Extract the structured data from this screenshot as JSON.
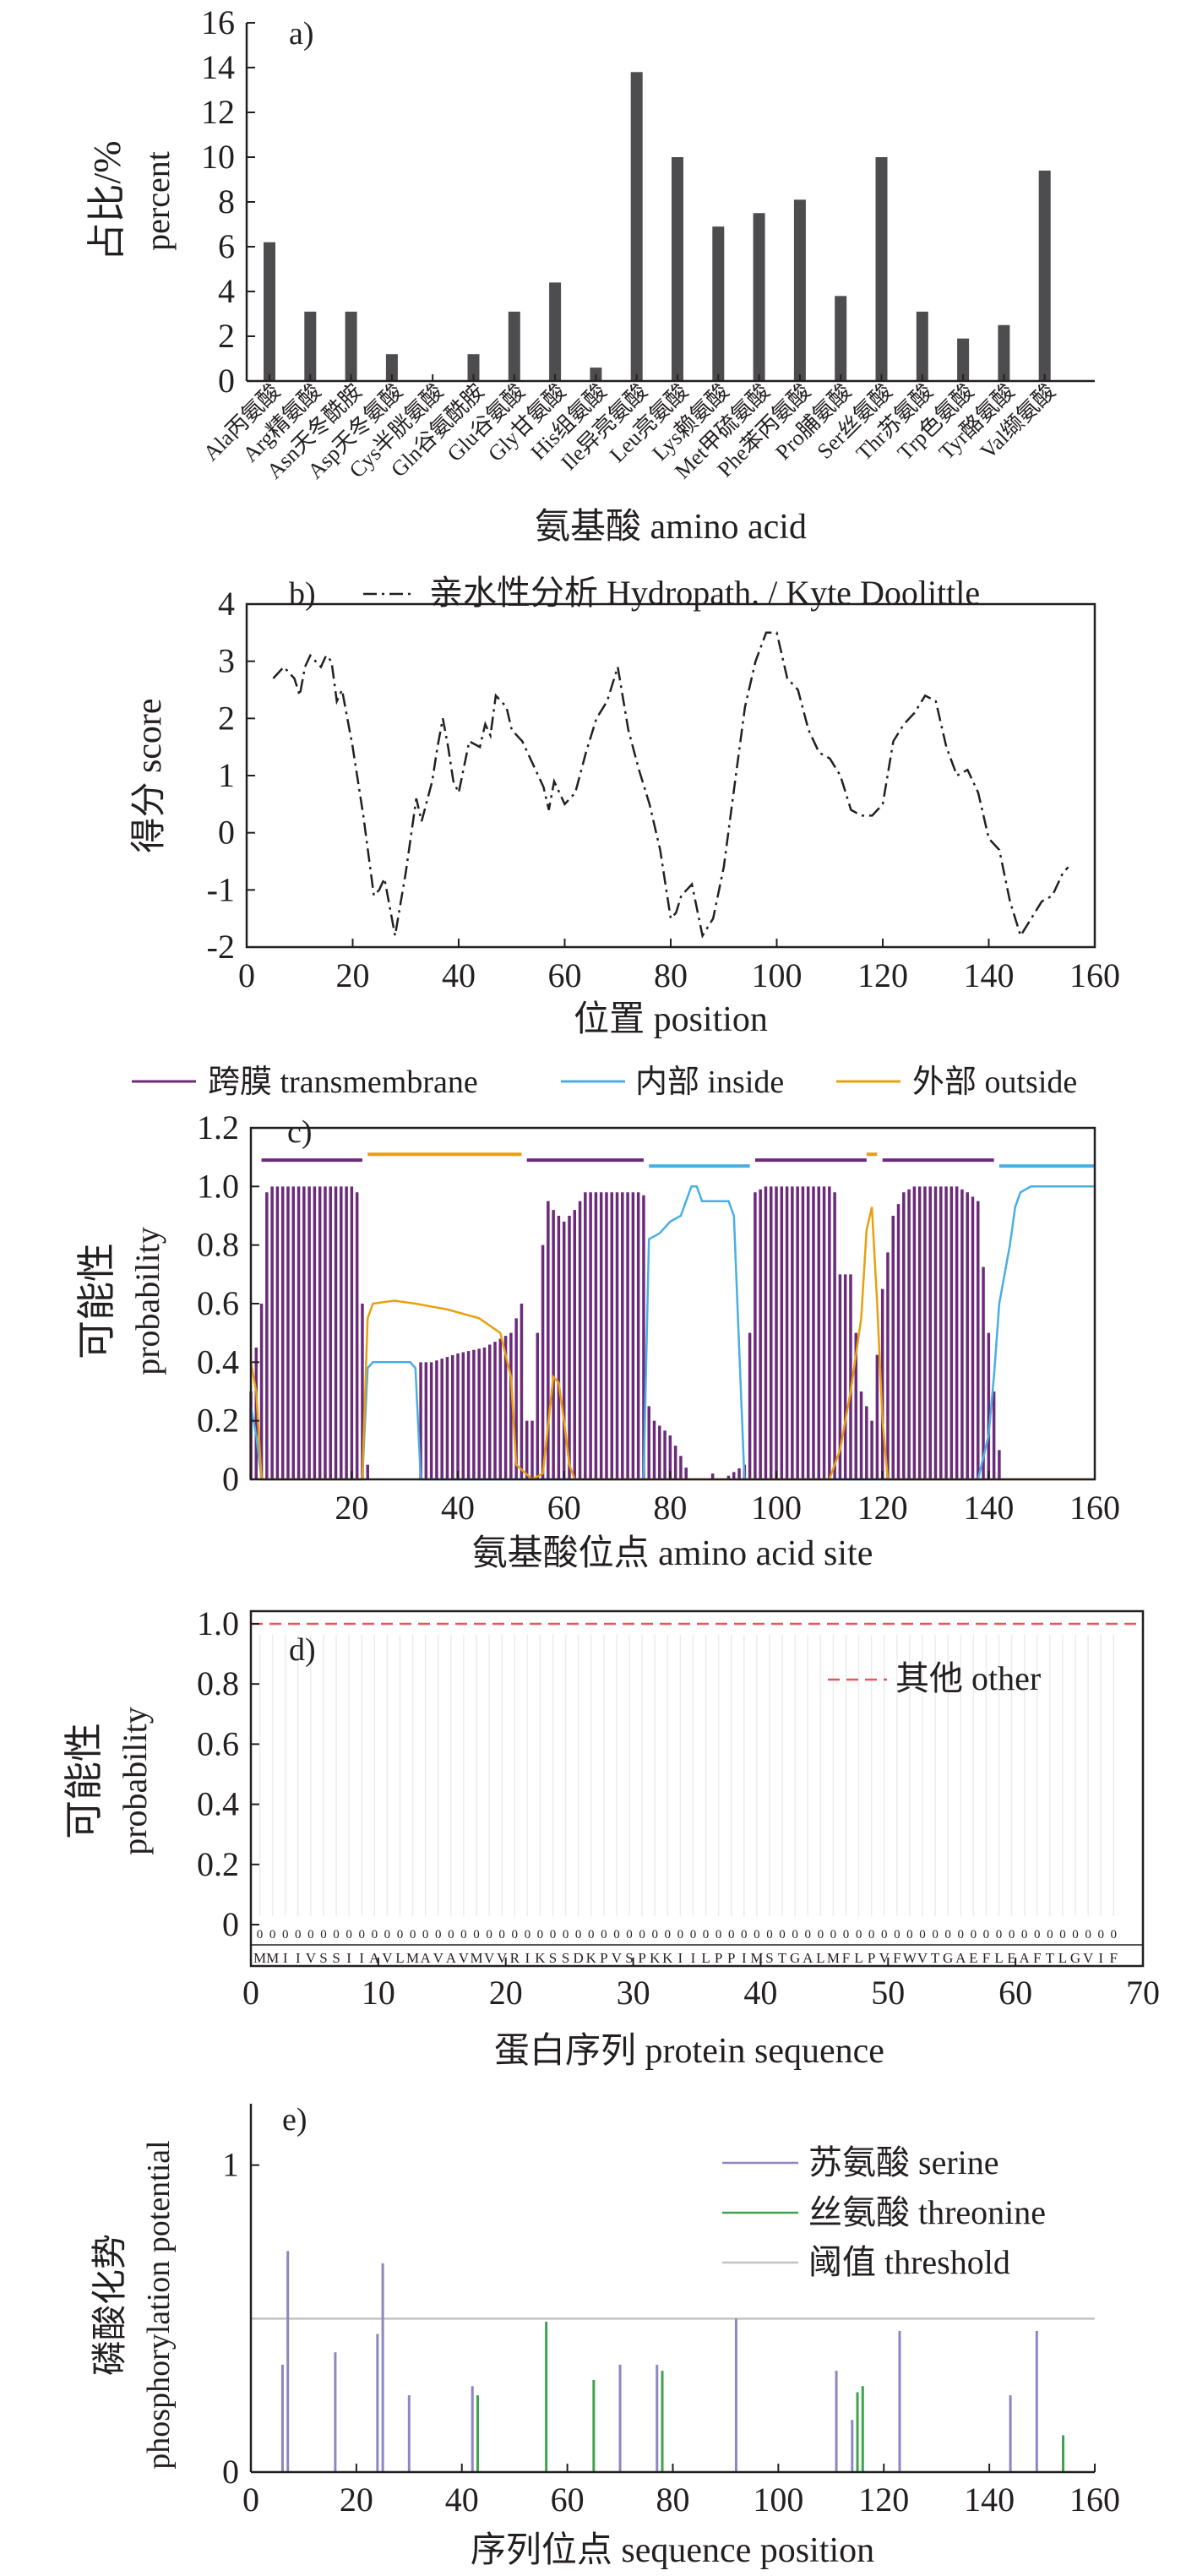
{
  "panels": [
    {
      "id": "a",
      "panel_label": "a)",
      "chart_data": {
        "type": "bar",
        "xlabel": "氨基酸 amino acid",
        "ylabel_cn": "占比/%",
        "ylabel_en": "percent",
        "ylim": [
          0,
          16
        ],
        "yticks": [
          0,
          2,
          4,
          6,
          8,
          10,
          12,
          14,
          16
        ],
        "categories": [
          "Ala丙氨酸",
          "Arg精氨酸",
          "Asn天冬酰胺",
          "Asp天冬氨酸",
          "Cys半胱氨酸",
          "Gln谷氨酰胺",
          "Glu谷氨酸",
          "Gly甘氨酸",
          "His组氨酸",
          "Ile异亮氨酸",
          "Leu亮氨酸",
          "Lys赖氨酸",
          "Met甲硫氨酸",
          "Phe苯丙氨酸",
          "Pro脯氨酸",
          "Ser丝氨酸",
          "Thr苏氨酸",
          "Trp色氨酸",
          "Tyr酪氨酸",
          "Val缬氨酸"
        ],
        "values": [
          6.2,
          3.1,
          3.1,
          1.2,
          0,
          1.2,
          3.1,
          4.4,
          0.6,
          13.8,
          10.0,
          6.9,
          7.5,
          8.1,
          3.8,
          10.0,
          3.1,
          1.9,
          2.5,
          9.4
        ],
        "bar_color": "#4d4d4f"
      }
    },
    {
      "id": "b",
      "panel_label": "b)",
      "chart_data": {
        "type": "line",
        "xlabel": "位置 position",
        "ylabel": "得分 score",
        "xlim": [
          0,
          160
        ],
        "ylim": [
          -2,
          4
        ],
        "xticks": [
          0,
          20,
          40,
          60,
          80,
          100,
          120,
          140,
          160
        ],
        "yticks": [
          -2,
          -1,
          0,
          1,
          2,
          3,
          4
        ],
        "series": [
          {
            "name": "亲水性分析 Hydropath. / Kyte Doolittle",
            "style": "dash-dot",
            "color": "#231f20",
            "x": [
              5,
              7,
              9,
              10,
              11,
              12,
              14,
              15,
              16,
              17,
              18,
              20,
              22,
              24,
              25,
              26,
              27,
              28,
              30,
              32,
              33,
              35,
              36,
              37,
              38,
              39,
              40,
              42,
              44,
              45,
              46,
              47,
              49,
              50,
              52,
              54,
              56,
              57,
              58,
              60,
              62,
              64,
              66,
              68,
              70,
              72,
              74,
              76,
              78,
              80,
              81,
              82,
              84,
              86,
              88,
              90,
              92,
              94,
              96,
              98,
              100,
              102,
              104,
              106,
              108,
              110,
              112,
              114,
              116,
              118,
              120,
              122,
              124,
              126,
              128,
              130,
              132,
              134,
              136,
              138,
              140,
              142,
              144,
              146,
              148,
              150,
              152,
              154,
              155
            ],
            "y": [
              2.7,
              2.9,
              2.7,
              2.4,
              2.9,
              3.1,
              2.9,
              3.1,
              3.0,
              2.3,
              2.5,
              1.5,
              0.3,
              -1.1,
              -1.0,
              -0.8,
              -1.3,
              -1.8,
              -0.7,
              0.6,
              0.2,
              0.9,
              1.5,
              2.0,
              1.5,
              0.9,
              0.7,
              1.6,
              1.5,
              1.9,
              1.7,
              2.4,
              2.2,
              1.8,
              1.6,
              1.2,
              0.8,
              0.4,
              0.9,
              0.5,
              0.7,
              1.4,
              2.0,
              2.3,
              2.9,
              1.8,
              1.1,
              0.5,
              -0.3,
              -1.5,
              -1.4,
              -1.1,
              -0.9,
              -1.8,
              -1.5,
              -0.6,
              0.8,
              2.2,
              3.0,
              3.5,
              3.5,
              2.7,
              2.5,
              1.8,
              1.4,
              1.3,
              1.0,
              0.4,
              0.3,
              0.3,
              0.5,
              1.6,
              1.9,
              2.1,
              2.4,
              2.3,
              1.5,
              1.0,
              1.1,
              0.7,
              -0.1,
              -0.3,
              -1.2,
              -1.8,
              -1.5,
              -1.2,
              -1.1,
              -0.7,
              -0.6
            ]
          }
        ]
      }
    },
    {
      "id": "c",
      "panel_label": "c)",
      "chart_data": {
        "type": "area",
        "xlabel": "氨基酸位点 amino acid site",
        "ylabel_cn": "可能性",
        "ylabel_en": "probability",
        "xlim": [
          1,
          160
        ],
        "ylim": [
          0,
          1.2
        ],
        "xticks": [
          20,
          40,
          60,
          80,
          100,
          120,
          140,
          160
        ],
        "yticks": [
          0,
          0.2,
          0.4,
          0.6,
          0.8,
          1.0,
          1.2
        ],
        "legend": [
          "跨膜 transmembrane",
          "内部 inside",
          "外部 outside"
        ],
        "colors": {
          "transmembrane": "#6b2a7a",
          "inside": "#4aaee3",
          "outside": "#e8a00e"
        },
        "topology": [
          {
            "type": "transmembrane",
            "start": 3,
            "end": 22
          },
          {
            "type": "outside",
            "start": 23,
            "end": 52
          },
          {
            "type": "transmembrane",
            "start": 53,
            "end": 75
          },
          {
            "type": "inside",
            "start": 76,
            "end": 95
          },
          {
            "type": "transmembrane",
            "start": 96,
            "end": 117
          },
          {
            "type": "outside",
            "start": 117,
            "end": 119
          },
          {
            "type": "transmembrane",
            "start": 120,
            "end": 141
          },
          {
            "type": "inside",
            "start": 142,
            "end": 160
          }
        ],
        "transmembrane_points": [
          [
            1,
            0.3
          ],
          [
            3,
            0.6
          ],
          [
            4,
            0.98
          ],
          [
            5,
            1.0
          ],
          [
            20,
            1.0
          ],
          [
            21,
            0.98
          ],
          [
            22,
            0.6
          ],
          [
            23,
            0.05
          ],
          [
            24,
            0.0
          ],
          [
            32,
            0.0
          ],
          [
            33,
            0.4
          ],
          [
            35,
            0.4
          ],
          [
            40,
            0.43
          ],
          [
            45,
            0.45
          ],
          [
            50,
            0.5
          ],
          [
            52,
            0.6
          ],
          [
            53,
            0.2
          ],
          [
            54,
            0.2
          ],
          [
            55,
            0.5
          ],
          [
            56,
            0.8
          ],
          [
            57,
            0.95
          ],
          [
            58,
            0.92
          ],
          [
            60,
            0.88
          ],
          [
            62,
            0.92
          ],
          [
            64,
            0.98
          ],
          [
            66,
            0.98
          ],
          [
            70,
            0.98
          ],
          [
            74,
            0.98
          ],
          [
            75,
            0.97
          ],
          [
            76,
            0.25
          ],
          [
            77,
            0.2
          ],
          [
            80,
            0.15
          ],
          [
            82,
            0.08
          ],
          [
            84,
            0.0
          ],
          [
            86,
            0.0
          ],
          [
            88,
            0.02
          ],
          [
            90,
            0.0
          ],
          [
            94,
            0.05
          ],
          [
            95,
            0.5
          ],
          [
            96,
            0.98
          ],
          [
            98,
            1.0
          ],
          [
            110,
            1.0
          ],
          [
            111,
            0.98
          ],
          [
            112,
            0.7
          ],
          [
            114,
            0.7
          ],
          [
            116,
            0.3
          ],
          [
            118,
            0.2
          ],
          [
            120,
            0.65
          ],
          [
            122,
            0.9
          ],
          [
            124,
            0.98
          ],
          [
            126,
            1.0
          ],
          [
            134,
            1.0
          ],
          [
            136,
            0.98
          ],
          [
            138,
            0.95
          ],
          [
            140,
            0.5
          ],
          [
            142,
            0.1
          ],
          [
            143,
            0.0
          ],
          [
            160,
            0.0
          ]
        ],
        "inside_points": [
          [
            1,
            0.25
          ],
          [
            2,
            0.15
          ],
          [
            3,
            0.0
          ],
          [
            22,
            0.0
          ],
          [
            23,
            0.38
          ],
          [
            24,
            0.4
          ],
          [
            31,
            0.4
          ],
          [
            32,
            0.38
          ],
          [
            33,
            0.0
          ],
          [
            75,
            0.0
          ],
          [
            76,
            0.82
          ],
          [
            78,
            0.84
          ],
          [
            80,
            0.88
          ],
          [
            82,
            0.9
          ],
          [
            84,
            1.0
          ],
          [
            85,
            1.0
          ],
          [
            86,
            0.95
          ],
          [
            91,
            0.95
          ],
          [
            92,
            0.9
          ],
          [
            93,
            0.45
          ],
          [
            94,
            0.0
          ],
          [
            95,
            0.0
          ],
          [
            138,
            0.0
          ],
          [
            140,
            0.15
          ],
          [
            141,
            0.35
          ],
          [
            142,
            0.6
          ],
          [
            144,
            0.8
          ],
          [
            145,
            0.93
          ],
          [
            146,
            0.98
          ],
          [
            148,
            1.0
          ],
          [
            160,
            1.0
          ]
        ],
        "outside_points": [
          [
            1,
            0.4
          ],
          [
            2,
            0.3
          ],
          [
            3,
            0.0
          ],
          [
            22,
            0.0
          ],
          [
            23,
            0.55
          ],
          [
            24,
            0.6
          ],
          [
            28,
            0.61
          ],
          [
            32,
            0.6
          ],
          [
            38,
            0.58
          ],
          [
            44,
            0.55
          ],
          [
            48,
            0.5
          ],
          [
            50,
            0.35
          ],
          [
            51,
            0.05
          ],
          [
            54,
            0.0
          ],
          [
            56,
            0.02
          ],
          [
            58,
            0.35
          ],
          [
            59,
            0.33
          ],
          [
            60,
            0.2
          ],
          [
            61,
            0.05
          ],
          [
            62,
            0.0
          ],
          [
            110,
            0.0
          ],
          [
            112,
            0.1
          ],
          [
            114,
            0.3
          ],
          [
            116,
            0.55
          ],
          [
            117,
            0.85
          ],
          [
            118,
            0.93
          ],
          [
            119,
            0.6
          ],
          [
            120,
            0.2
          ],
          [
            121,
            0.0
          ],
          [
            160,
            0.0
          ]
        ]
      }
    },
    {
      "id": "d",
      "panel_label": "d)",
      "chart_data": {
        "type": "line",
        "xlabel": "蛋白序列  protein sequence",
        "ylabel_cn": "可能性",
        "ylabel_en": "probability",
        "xlim": [
          0,
          70
        ],
        "ylim": [
          0,
          1
        ],
        "xticks": [
          0,
          10,
          20,
          30,
          40,
          50,
          60,
          70
        ],
        "yticks": [
          0,
          0.2,
          0.4,
          0.6,
          0.8,
          1.0
        ],
        "sequence": "MMIIVSSIIAVLMAVAVMVVRIKSSDKPVSPKKIILPPIMSTGALMFLPVFWVTGAEFLEAFTLGVIF",
        "series": [
          {
            "name": "其他 other",
            "style": "dashed",
            "color": "#e8555b",
            "value": 1.0
          }
        ]
      }
    },
    {
      "id": "e",
      "panel_label": "e)",
      "chart_data": {
        "type": "bar",
        "xlabel": "序列位点 sequence position",
        "ylabel_cn": "磷酸化势",
        "ylabel_en": "phosphorylation potential",
        "xlim": [
          0,
          160
        ],
        "ylim": [
          0,
          1.2
        ],
        "xticks": [
          0,
          20,
          40,
          60,
          80,
          100,
          120,
          140,
          160
        ],
        "yticks": [
          0,
          1
        ],
        "threshold": 0.5,
        "series": [
          {
            "name": "苏氨酸 serine",
            "color": "#8c87c2",
            "x": [
              6,
              7,
              16,
              24,
              25,
              30,
              42,
              70,
              77,
              92,
              111,
              114,
              123,
              144,
              149
            ],
            "values": [
              0.35,
              0.72,
              0.39,
              0.45,
              0.68,
              0.25,
              0.28,
              0.35,
              0.35,
              0.5,
              0.33,
              0.17,
              0.46,
              0.25,
              0.46
            ]
          },
          {
            "name": "丝氨酸 threonine",
            "color": "#3fa34d",
            "x": [
              43,
              56,
              65,
              78,
              115,
              116,
              154
            ],
            "values": [
              0.25,
              0.49,
              0.3,
              0.33,
              0.26,
              0.28,
              0.12
            ]
          },
          {
            "name": "阈值 threshold",
            "color": "#c2c2c2"
          }
        ]
      }
    }
  ]
}
